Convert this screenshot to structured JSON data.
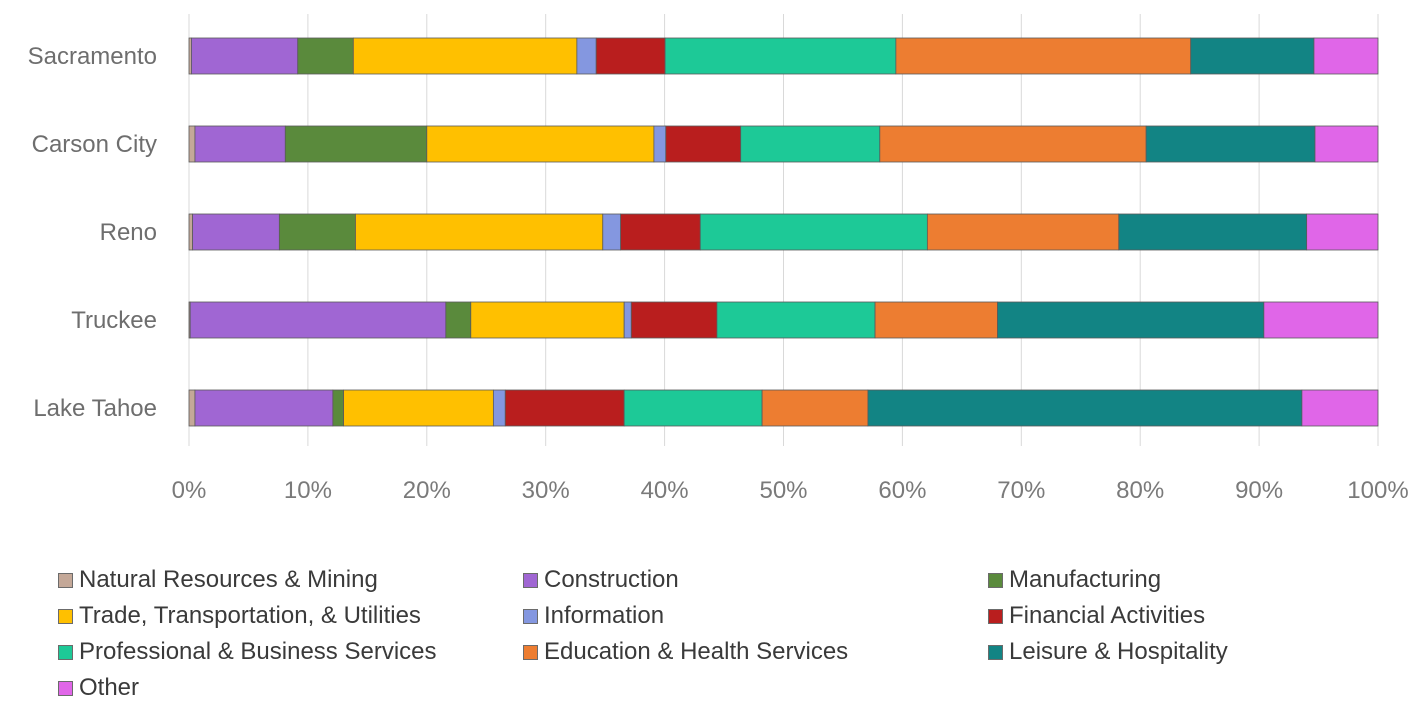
{
  "chart_data": {
    "type": "bar",
    "orientation": "horizontal",
    "stacked": "percent",
    "categories": [
      "Sacramento",
      "Carson City",
      "Reno",
      "Truckee",
      "Lake Tahoe"
    ],
    "series": [
      {
        "name": "Natural Resources & Mining",
        "color": "#c4a898",
        "values": [
          0.2,
          0.5,
          0.3,
          0.1,
          0.5
        ]
      },
      {
        "name": "Construction",
        "color": "#a066d3",
        "values": [
          8.8,
          7.6,
          7.3,
          21.5,
          11.6
        ]
      },
      {
        "name": "Manufacturing",
        "color": "#5a8a3c",
        "values": [
          4.6,
          11.9,
          6.4,
          2.1,
          0.9
        ]
      },
      {
        "name": "Trade, Transportation, & Utilities",
        "color": "#ffc000",
        "values": [
          18.5,
          19.1,
          20.8,
          12.9,
          12.6
        ]
      },
      {
        "name": "Information",
        "color": "#8497e0",
        "values": [
          1.6,
          1.0,
          1.5,
          0.6,
          1.0
        ]
      },
      {
        "name": "Financial Activities",
        "color": "#b91e1e",
        "values": [
          5.7,
          6.3,
          6.7,
          7.2,
          10.0
        ]
      },
      {
        "name": "Professional & Business Services",
        "color": "#1dc997",
        "values": [
          19.1,
          11.7,
          19.1,
          13.3,
          11.6
        ]
      },
      {
        "name": "Education & Health Services",
        "color": "#ed7d31",
        "values": [
          24.4,
          22.4,
          16.1,
          10.3,
          8.9
        ]
      },
      {
        "name": "Leisure & Hospitality",
        "color": "#128484",
        "values": [
          10.2,
          14.2,
          15.8,
          22.4,
          36.5
        ]
      },
      {
        "name": "Other",
        "color": "#e066e8",
        "values": [
          5.3,
          5.3,
          6.0,
          9.6,
          6.4
        ]
      }
    ],
    "x_ticks": [
      "0%",
      "10%",
      "20%",
      "30%",
      "40%",
      "50%",
      "60%",
      "70%",
      "80%",
      "90%",
      "100%"
    ],
    "xlim": [
      0,
      100
    ],
    "xlabel": "",
    "ylabel": "",
    "title": "",
    "grid": "vertical",
    "legend_position": "bottom"
  }
}
